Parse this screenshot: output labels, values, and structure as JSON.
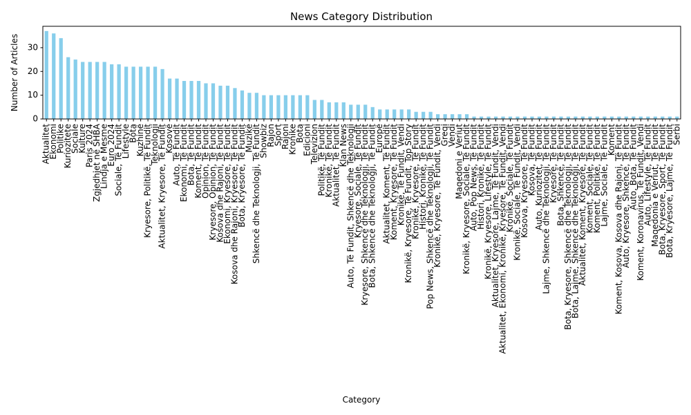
{
  "chart_data": {
    "type": "bar",
    "title": "News Category Distribution",
    "xlabel": "Category",
    "ylabel": "Number of Articles",
    "ylim": [
      0,
      39
    ],
    "yticks": [
      0,
      10,
      20,
      30
    ],
    "bar_color": "#87ceeb",
    "grid": false,
    "legend": "none",
    "categories": [
      "Aktualitet",
      "Ekonomi",
      "Politike",
      "Kuriozitete",
      "Sociale",
      "Kulture",
      "Paris 2024",
      "Zgjedhjet në SHBA",
      "Lindja e Mesme",
      "Euro 2024",
      "Sociale, Të Fundit",
      "Lifestyle",
      "Bota",
      "Kuzhinë",
      "Kryesore, Politikë, Të Fundit",
      "Teknologji",
      "Aktualitet, Kryesore, Të Fundit",
      "Kosovë",
      "Auto, Të Fundit",
      "Ekonomi, Të Fundit",
      "Bota, Të Fundit",
      "Koment, Të Fundit",
      "Opinion, Të Fundit",
      "Kryesore, Opinion, Të Fundit",
      "Kosova dhe Rajoni, Të Fundit",
      "Ekonomi, Kryesore, Të Fundit",
      "Kosova dhe Rajoni, Kryesore, Të Fundit",
      "Bota, Kryesore, Të Fundit",
      "Muzikë",
      "Shkencë dhe Teknologji, Të Fundit",
      "Showbiz",
      "Rajon",
      "Sport",
      "Rajoni",
      "Kronike",
      "Bota",
      "Edicioni",
      "Televizion",
      "Politikë, Të Fundit",
      "Kronikë, Të Fundit",
      "Aktualitet, Të Fundit",
      "Klan News",
      "Auto, Të Fundit, Shkencë dhe Teknologji",
      "Kryesore, Sociale, Të Fundit",
      "Kryesore, Shkencë dhe Teknologji, Të Fundit",
      "Bota, Shkencë dhe Teknologji, Të Fundit",
      "Europë",
      "Aktualitet, Koment, Të Fundit",
      "Koment, Kryesore, Të Fundit",
      "Kronikë, Të Fundit, Vendi",
      "Kronikë, Kryesore, Të Fundit, Top Story",
      "Kronikë, Kryesore, Të Fundit",
      "Histori, Kronikë, Të Fundit",
      "Pop News, Shkencë dhe Teknologji, Të Fundit",
      "Kronikë, Kryesore, Të Fundit, Vendi",
      "Greqi",
      "Vendi",
      "Maqedoni e Veriut",
      "Kronikë, Kryesore, Sociale, Të Fundit",
      "Auto, Pop News, Të Fundit",
      "Histori, Kronikë, Të Fundit",
      "Kronikë, Kryesore, Lifestyle, Të Fundit",
      "Aktualitet, Kryesore, Lajme, Të Fundit, Vendi",
      "Aktualitet, Ekonomi, Kronikë, Kryesore, Të Fundit, Vendi",
      "Kronikë, Sociale, Të Fundit",
      "Kronikë, Sociale, Të Fundit, Vendi",
      "Kosova, Kryesore, Të Fundit",
      "Kosova, Të Fundit",
      "Auto, Kuriozitet, Të Fundit",
      "Lajme, Shkencë dhe Teknologji, Të Fundit",
      "Kryesore, Të Fundit",
      "Bota, Shkencë, Të Fundit",
      "Bota, Kryesore, Shkencë dhe Teknologji, Të Fundit",
      "Bota, Lajme, Shkencë dhe Teknologji, Të Fundit",
      "Aktualitet, Koment, Kryesore, Të Fundit",
      "Koment, Sociale, Të Fundit",
      "Koment, Politikë, Të Fundit",
      "Lajme, Sociale, Të Fundit",
      "Koment",
      "Koment, Kosova, Kosova dhe Rajoni, Të Fundit",
      "Auto, Kryesore, Shkencë, Të Fundit",
      "Auto, Bota, Të Fundit",
      "Koment, Koronavirus, Të Fundit, Vendi",
      "Auto, Lifestyle, Të Fundit",
      "Maqedonia e Veriut, Të Fundit",
      "Bota, Kryesore, Sport, Të Fundit",
      "Bota, Kryesore, Lajme, Të Fundit",
      "Serbi"
    ],
    "values": [
      37,
      36,
      34,
      26,
      25,
      24,
      24,
      24,
      24,
      23,
      23,
      22,
      22,
      22,
      22,
      22,
      21,
      17,
      17,
      16,
      16,
      16,
      15,
      15,
      14,
      14,
      13,
      12,
      11,
      11,
      10,
      10,
      10,
      10,
      10,
      10,
      10,
      8,
      8,
      7,
      7,
      7,
      6,
      6,
      6,
      5,
      4,
      4,
      4,
      4,
      4,
      3,
      3,
      3,
      2,
      2,
      2,
      2,
      2,
      1,
      1,
      1,
      1,
      1,
      1,
      1,
      1,
      1,
      1,
      1,
      1,
      1,
      1,
      1,
      1,
      1,
      1,
      1,
      1,
      1,
      1,
      1,
      1,
      1,
      1,
      1,
      1,
      1
    ]
  }
}
